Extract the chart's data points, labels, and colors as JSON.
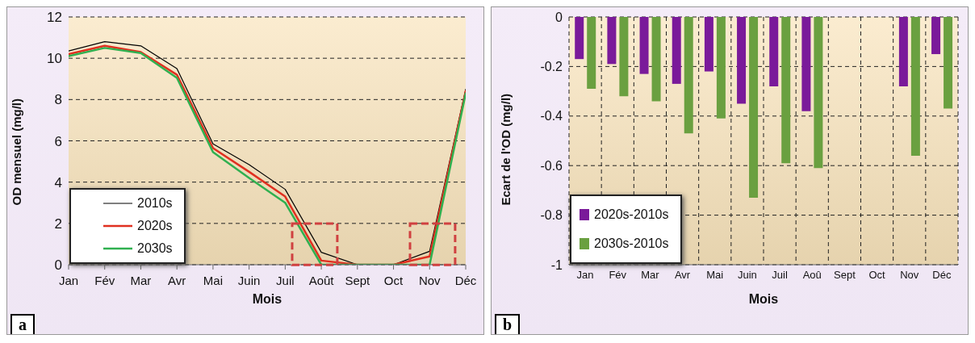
{
  "chart_data": [
    {
      "type": "line",
      "xlabel": "Mois",
      "ylabel": "OD mensuel (mg/l)",
      "categories": [
        "Jan",
        "Fév",
        "Mar",
        "Avr",
        "Mai",
        "Juin",
        "Juil",
        "Août",
        "Sept",
        "Oct",
        "Nov",
        "Déc"
      ],
      "series": [
        {
          "name": "2010s",
          "color": "#000000",
          "values": [
            10.35,
            10.8,
            10.6,
            9.5,
            5.85,
            4.85,
            3.65,
            0.6,
            0,
            0,
            0.65,
            8.5
          ]
        },
        {
          "name": "2020s",
          "color": "#e03020",
          "values": [
            10.2,
            10.6,
            10.3,
            9.2,
            5.65,
            4.5,
            3.3,
            0.2,
            0,
            0,
            0.4,
            8.4
          ]
        },
        {
          "name": "2030s",
          "color": "#30b050",
          "values": [
            10.1,
            10.5,
            10.25,
            9.05,
            5.45,
            4.2,
            3.0,
            0,
            0,
            0,
            0,
            8.3
          ]
        }
      ],
      "ylim": [
        0,
        12
      ],
      "yticks": [
        0,
        2,
        4,
        6,
        8,
        10,
        12
      ],
      "grid": "y",
      "legend": "bottom left",
      "marker": "none",
      "line_style": "solid",
      "annotations": [
        "a"
      ]
    },
    {
      "type": "bar",
      "xlabel": "Mois",
      "ylabel": "Ecart de l'OD (mg/l)",
      "categories": [
        "Jan",
        "Fév",
        "Mar",
        "Avr",
        "Mai",
        "Juin",
        "Juil",
        "Aoû",
        "Sept",
        "Oct",
        "Nov",
        "Déc"
      ],
      "series": [
        {
          "name": "2020s-2010s",
          "color": "#7a1a9a",
          "values": [
            -0.17,
            -0.19,
            -0.23,
            -0.27,
            -0.22,
            -0.35,
            -0.28,
            -0.38,
            null,
            null,
            -0.28,
            -0.15
          ]
        },
        {
          "name": "2030s-2010s",
          "color": "#6aa040",
          "values": [
            -0.29,
            -0.32,
            -0.34,
            -0.47,
            -0.41,
            -0.73,
            -0.59,
            -0.61,
            null,
            null,
            -0.56,
            -0.37
          ]
        }
      ],
      "ylim": [
        -1,
        0
      ],
      "yticks": [
        -1,
        -0.8,
        -0.6,
        -0.4,
        -0.2,
        0
      ],
      "grid": true,
      "legend": "bottom left",
      "annotations": [
        "b"
      ]
    }
  ]
}
